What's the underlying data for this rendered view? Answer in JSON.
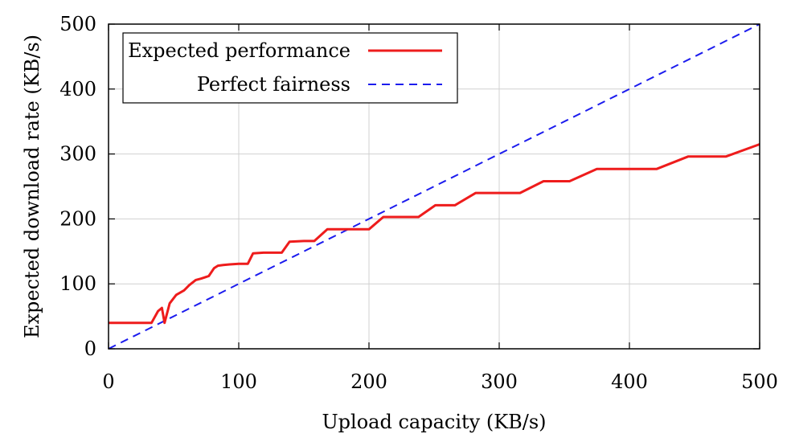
{
  "chart_data": {
    "type": "line",
    "title": "",
    "xlabel": "Upload capacity (KB/s)",
    "ylabel": "Expected download rate (KB/s)",
    "xlim": [
      0,
      500
    ],
    "ylim": [
      0,
      500
    ],
    "xticks": [
      0,
      100,
      200,
      300,
      400,
      500
    ],
    "yticks": [
      0,
      100,
      200,
      300,
      400,
      500
    ],
    "grid": true,
    "legend_position": "top-left",
    "series": [
      {
        "name": "Expected performance",
        "color": "#ee1c1c",
        "style": "solid",
        "x": [
          0,
          33,
          38,
          41,
          43,
          47,
          52,
          58,
          62,
          67,
          71,
          77,
          81,
          84,
          88,
          93,
          100,
          107,
          111,
          119,
          123,
          133,
          139,
          150,
          158,
          168,
          176,
          186,
          193,
          200,
          211,
          219,
          238,
          251,
          258,
          266,
          282,
          296,
          316,
          334,
          354,
          375,
          395,
          421,
          445,
          474,
          500
        ],
        "y": [
          40,
          40,
          58,
          63,
          40,
          70,
          83,
          90,
          98,
          106,
          108,
          112,
          124,
          128,
          129,
          130,
          131,
          131,
          147,
          148,
          148,
          148,
          165,
          166,
          166,
          184,
          184,
          184,
          184,
          184,
          203,
          203,
          203,
          221,
          221,
          221,
          240,
          240,
          240,
          258,
          258,
          277,
          277,
          277,
          296,
          296,
          315
        ]
      },
      {
        "name": "Perfect fairness",
        "color": "#1c1cee",
        "style": "dashed",
        "x": [
          0,
          500
        ],
        "y": [
          0,
          500
        ]
      }
    ]
  }
}
